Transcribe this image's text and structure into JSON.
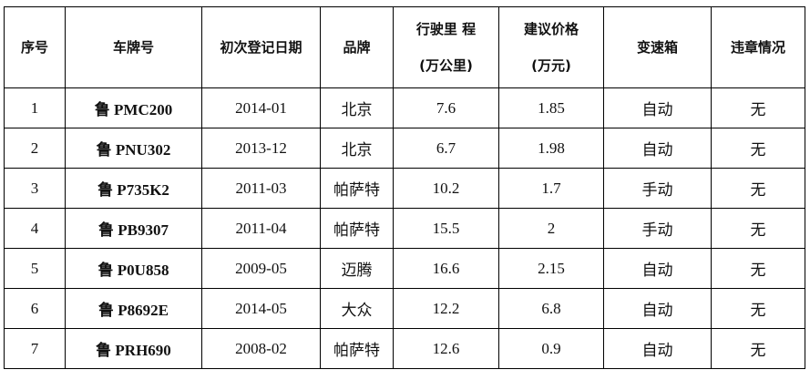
{
  "headers": [
    "序号",
    "车牌号",
    "初次登记日期",
    "品牌",
    "行驶里 程",
    "(万公里)",
    "建议价格",
    "(万元)",
    "变速箱",
    "违章情况"
  ],
  "rows": [
    [
      "1",
      "鲁 PMC200",
      "2014-01",
      "北京",
      "7.6",
      "1.85",
      "自动",
      "无"
    ],
    [
      "2",
      "鲁 PNU302",
      "2013-12",
      "北京",
      "6.7",
      "1.98",
      "自动",
      "无"
    ],
    [
      "3",
      "鲁 P735K2",
      "2011-03",
      "帕萨特",
      "10.2",
      "1.7",
      "手动",
      "无"
    ],
    [
      "4",
      "鲁 PB9307",
      "2011-04",
      "帕萨特",
      "15.5",
      "2",
      "手动",
      "无"
    ],
    [
      "5",
      "鲁 P0U858",
      "2009-05",
      "迈腾",
      "16.6",
      "2.15",
      "自动",
      "无"
    ],
    [
      "6",
      "鲁 P8692E",
      "2014-05",
      "大众",
      "12.2",
      "6.8",
      "自动",
      "无"
    ],
    [
      "7",
      "鲁 PRH690",
      "2008-02",
      "帕萨特",
      "12.6",
      "0.9",
      "自动",
      "无"
    ]
  ]
}
